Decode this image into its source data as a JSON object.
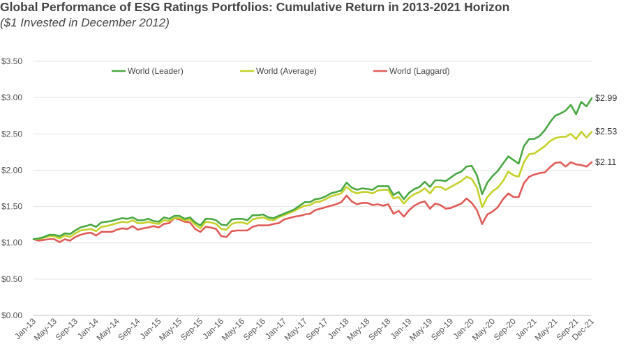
{
  "title": "Global Performance of ESG Ratings Portfolios: Cumulative Return in 2013-2021 Horizon",
  "subtitle": "($1 Invested in December 2012)",
  "chart_data": {
    "type": "line",
    "ylim": [
      0,
      3.5
    ],
    "yticks": [
      "$0.00",
      "$0.50",
      "$1.00",
      "$1.50",
      "$2.00",
      "$2.50",
      "$3.00",
      "$3.50"
    ],
    "ytick_values": [
      0,
      0.5,
      1.0,
      1.5,
      2.0,
      2.5,
      3.0,
      3.5
    ],
    "xtick_labels": [
      "Jan-13",
      "May-13",
      "Sep-13",
      "Jan-14",
      "May-14",
      "Sep-14",
      "Jan-15",
      "May-15",
      "Sep-15",
      "Jan-16",
      "May-16",
      "Sep-16",
      "Jan-17",
      "May-17",
      "Sep-17",
      "Jan-18",
      "May-18",
      "Sep-18",
      "Jan-19",
      "May-19",
      "Sep-19",
      "Jan-20",
      "May-20",
      "Sep-20",
      "Jan-21",
      "May-21",
      "Sep-21",
      "Dec-21"
    ],
    "grid": "horizontal",
    "legend": "top",
    "series": [
      {
        "name": "World (Leader)",
        "color": "#4aa843",
        "end_label": "$2.99",
        "values": [
          1.05,
          1.06,
          1.08,
          1.11,
          1.11,
          1.09,
          1.13,
          1.12,
          1.17,
          1.21,
          1.23,
          1.25,
          1.22,
          1.28,
          1.29,
          1.3,
          1.32,
          1.34,
          1.33,
          1.35,
          1.31,
          1.31,
          1.33,
          1.3,
          1.29,
          1.35,
          1.33,
          1.37,
          1.37,
          1.33,
          1.35,
          1.28,
          1.24,
          1.33,
          1.33,
          1.31,
          1.25,
          1.24,
          1.32,
          1.33,
          1.33,
          1.31,
          1.38,
          1.38,
          1.39,
          1.35,
          1.34,
          1.37,
          1.4,
          1.43,
          1.46,
          1.51,
          1.56,
          1.56,
          1.6,
          1.61,
          1.64,
          1.68,
          1.7,
          1.72,
          1.83,
          1.76,
          1.73,
          1.75,
          1.74,
          1.73,
          1.78,
          1.78,
          1.78,
          1.66,
          1.7,
          1.6,
          1.69,
          1.74,
          1.77,
          1.84,
          1.77,
          1.86,
          1.86,
          1.85,
          1.9,
          1.95,
          1.98,
          2.05,
          2.06,
          1.93,
          1.67,
          1.83,
          1.92,
          1.99,
          2.09,
          2.19,
          2.14,
          2.09,
          2.33,
          2.43,
          2.43,
          2.47,
          2.55,
          2.66,
          2.75,
          2.78,
          2.82,
          2.9,
          2.77,
          2.94,
          2.88,
          2.99
        ]
      },
      {
        "name": "World (Average)",
        "color": "#c5d12a",
        "end_label": "$2.53",
        "values": [
          1.05,
          1.05,
          1.07,
          1.09,
          1.09,
          1.06,
          1.1,
          1.08,
          1.13,
          1.17,
          1.18,
          1.19,
          1.16,
          1.22,
          1.23,
          1.25,
          1.27,
          1.29,
          1.28,
          1.31,
          1.27,
          1.27,
          1.29,
          1.27,
          1.26,
          1.31,
          1.3,
          1.34,
          1.34,
          1.31,
          1.32,
          1.25,
          1.2,
          1.29,
          1.28,
          1.26,
          1.19,
          1.18,
          1.26,
          1.28,
          1.28,
          1.26,
          1.32,
          1.34,
          1.35,
          1.32,
          1.31,
          1.35,
          1.38,
          1.41,
          1.44,
          1.48,
          1.51,
          1.52,
          1.56,
          1.57,
          1.6,
          1.64,
          1.66,
          1.68,
          1.77,
          1.71,
          1.68,
          1.7,
          1.7,
          1.68,
          1.72,
          1.73,
          1.73,
          1.61,
          1.63,
          1.54,
          1.62,
          1.67,
          1.7,
          1.75,
          1.68,
          1.77,
          1.77,
          1.73,
          1.77,
          1.81,
          1.85,
          1.91,
          1.88,
          1.76,
          1.49,
          1.63,
          1.71,
          1.76,
          1.85,
          1.98,
          1.93,
          1.91,
          2.11,
          2.22,
          2.23,
          2.28,
          2.33,
          2.4,
          2.44,
          2.46,
          2.46,
          2.5,
          2.43,
          2.53,
          2.45,
          2.53
        ]
      },
      {
        "name": "World (Laggard)",
        "color": "#e05b57",
        "end_label": "$2.11",
        "values": [
          1.05,
          1.03,
          1.04,
          1.05,
          1.05,
          1.01,
          1.05,
          1.03,
          1.08,
          1.11,
          1.13,
          1.14,
          1.1,
          1.15,
          1.15,
          1.15,
          1.18,
          1.2,
          1.19,
          1.23,
          1.18,
          1.2,
          1.21,
          1.23,
          1.21,
          1.26,
          1.27,
          1.34,
          1.32,
          1.29,
          1.28,
          1.19,
          1.15,
          1.22,
          1.21,
          1.19,
          1.09,
          1.08,
          1.16,
          1.17,
          1.17,
          1.17,
          1.22,
          1.24,
          1.24,
          1.24,
          1.26,
          1.27,
          1.32,
          1.34,
          1.36,
          1.37,
          1.39,
          1.4,
          1.45,
          1.47,
          1.49,
          1.51,
          1.53,
          1.56,
          1.65,
          1.57,
          1.53,
          1.55,
          1.55,
          1.52,
          1.53,
          1.51,
          1.53,
          1.4,
          1.44,
          1.36,
          1.45,
          1.51,
          1.55,
          1.57,
          1.47,
          1.54,
          1.52,
          1.47,
          1.48,
          1.51,
          1.54,
          1.61,
          1.55,
          1.45,
          1.26,
          1.39,
          1.43,
          1.49,
          1.6,
          1.68,
          1.63,
          1.63,
          1.82,
          1.91,
          1.94,
          1.96,
          1.97,
          2.04,
          2.1,
          2.11,
          2.05,
          2.11,
          2.08,
          2.07,
          2.05,
          2.11
        ]
      }
    ]
  }
}
